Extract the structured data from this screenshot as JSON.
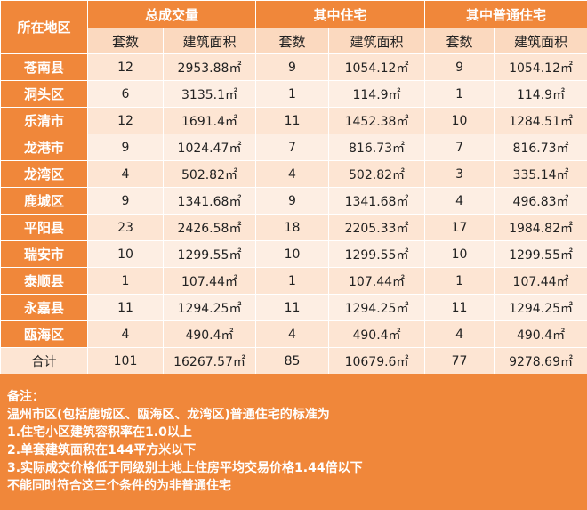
{
  "header": {
    "region_label": "所在地区",
    "groups": [
      "总成交量",
      "其中住宅",
      "其中普通住宅"
    ],
    "sub": [
      "套数",
      "建筑面积",
      "套数",
      "建筑面积",
      "套数",
      "建筑面积"
    ]
  },
  "rows": [
    {
      "region": "苍南县",
      "cells": [
        "12",
        "2953.88㎡",
        "9",
        "1054.12㎡",
        "9",
        "1054.12㎡"
      ]
    },
    {
      "region": "洞头区",
      "cells": [
        "6",
        "3135.1㎡",
        "1",
        "114.9㎡",
        "1",
        "114.9㎡"
      ]
    },
    {
      "region": "乐清市",
      "cells": [
        "12",
        "1691.4㎡",
        "11",
        "1452.38㎡",
        "10",
        "1284.51㎡"
      ]
    },
    {
      "region": "龙港市",
      "cells": [
        "9",
        "1024.47㎡",
        "7",
        "816.73㎡",
        "7",
        "816.73㎡"
      ]
    },
    {
      "region": "龙湾区",
      "cells": [
        "4",
        "502.82㎡",
        "4",
        "502.82㎡",
        "3",
        "335.14㎡"
      ]
    },
    {
      "region": "鹿城区",
      "cells": [
        "9",
        "1341.68㎡",
        "9",
        "1341.68㎡",
        "4",
        "496.83㎡"
      ]
    },
    {
      "region": "平阳县",
      "cells": [
        "23",
        "2426.58㎡",
        "18",
        "2205.33㎡",
        "17",
        "1984.82㎡"
      ]
    },
    {
      "region": "瑞安市",
      "cells": [
        "10",
        "1299.55㎡",
        "10",
        "1299.55㎡",
        "10",
        "1299.55㎡"
      ]
    },
    {
      "region": "泰顺县",
      "cells": [
        "1",
        "107.44㎡",
        "1",
        "107.44㎡",
        "1",
        "107.44㎡"
      ]
    },
    {
      "region": "永嘉县",
      "cells": [
        "11",
        "1294.25㎡",
        "11",
        "1294.25㎡",
        "11",
        "1294.25㎡"
      ]
    },
    {
      "region": "瓯海区",
      "cells": [
        "4",
        "490.4㎡",
        "4",
        "490.4㎡",
        "4",
        "490.4㎡"
      ]
    }
  ],
  "total": {
    "label": "合计",
    "cells": [
      "101",
      "16267.57㎡",
      "85",
      "10679.6㎡",
      "77",
      "9278.69㎡"
    ]
  },
  "notes": [
    "备注：",
    "温州市区(包括鹿城区、瓯海区、龙湾区)普通住宅的标准为",
    "1.住宅小区建筑容积率在1.0以上",
    "2.单套建筑面积在144平方米以下",
    "3.实际成交价格低于同级别土地上住房平均交易价格1.44倍以下",
    "不能同时符合这三个条件的为非普通住宅"
  ]
}
